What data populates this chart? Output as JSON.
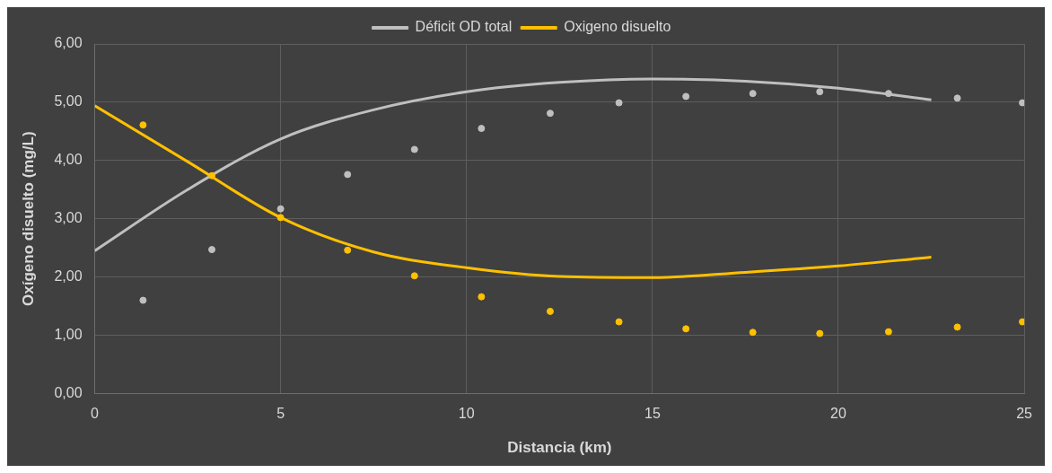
{
  "chart_data": {
    "type": "scatter",
    "xlabel": "Distancia (km)",
    "ylabel": "Oxígeno disuelto (mg/L)",
    "xlim": [
      0,
      25
    ],
    "xticks": [
      0,
      5,
      10,
      15,
      20,
      25
    ],
    "ylim": [
      0,
      6
    ],
    "yticks": [
      {
        "value": 0,
        "label": "0,00"
      },
      {
        "value": 1,
        "label": "1,00"
      },
      {
        "value": 2,
        "label": "2,00"
      },
      {
        "value": 3,
        "label": "3,00"
      },
      {
        "value": 4,
        "label": "4,00"
      },
      {
        "value": 5,
        "label": "5,00"
      },
      {
        "value": 6,
        "label": "6,00"
      }
    ],
    "grid": true,
    "legend": "top",
    "marker": "circle",
    "series": [
      {
        "name": "Déficit OD total",
        "type": "scatter",
        "color": "#bfbfbf",
        "x": [
          1.3,
          3.15,
          5,
          6.8,
          8.6,
          10.4,
          12.25,
          14.1,
          15.9,
          17.7,
          19.5,
          21.35,
          23.2,
          24.95
        ],
        "values": [
          1.6,
          2.47,
          3.17,
          3.76,
          4.19,
          4.55,
          4.81,
          4.99,
          5.1,
          5.15,
          5.18,
          5.15,
          5.07,
          4.99
        ]
      },
      {
        "name": "Oxigeno disuelto",
        "type": "scatter",
        "color": "#ffc000",
        "x": [
          1.3,
          3.15,
          5,
          6.8,
          8.6,
          10.4,
          12.25,
          14.1,
          15.9,
          17.7,
          19.5,
          21.35,
          23.2,
          24.95
        ],
        "values": [
          4.61,
          3.74,
          3.02,
          2.46,
          2.02,
          1.66,
          1.41,
          1.23,
          1.11,
          1.05,
          1.03,
          1.06,
          1.14,
          1.23
        ]
      },
      {
        "type": "line",
        "color": "#bfbfbf",
        "marker": "none",
        "x": [
          0,
          2.5,
          5,
          7.5,
          10,
          12.5,
          15,
          17.5,
          20,
          22.5
        ],
        "values": [
          2.45,
          3.5,
          4.37,
          4.87,
          5.18,
          5.34,
          5.4,
          5.36,
          5.24,
          5.04
        ]
      },
      {
        "type": "line",
        "color": "#ffc000",
        "marker": "none",
        "x": [
          0,
          2.5,
          5,
          7.5,
          10,
          12.5,
          15,
          17.5,
          20,
          22.5
        ],
        "values": [
          4.94,
          3.98,
          3.02,
          2.43,
          2.16,
          2.01,
          1.99,
          2.08,
          2.19,
          2.34
        ]
      }
    ]
  }
}
